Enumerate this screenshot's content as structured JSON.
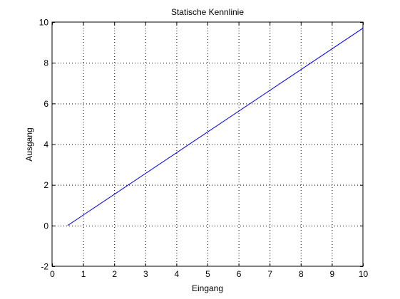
{
  "chart_data": {
    "type": "line",
    "title": "Statische Kennlinie",
    "xlabel": "Eingang",
    "ylabel": "Ausgang",
    "xlim": [
      0,
      10
    ],
    "ylim": [
      -2,
      10
    ],
    "xticks": [
      0,
      1,
      2,
      3,
      4,
      5,
      6,
      7,
      8,
      9,
      10
    ],
    "yticks": [
      -2,
      0,
      2,
      4,
      6,
      8,
      10
    ],
    "grid": true,
    "series": [
      {
        "color": "#0000ff",
        "x": [
          0.5,
          10
        ],
        "y": [
          0,
          9.7
        ]
      }
    ]
  }
}
